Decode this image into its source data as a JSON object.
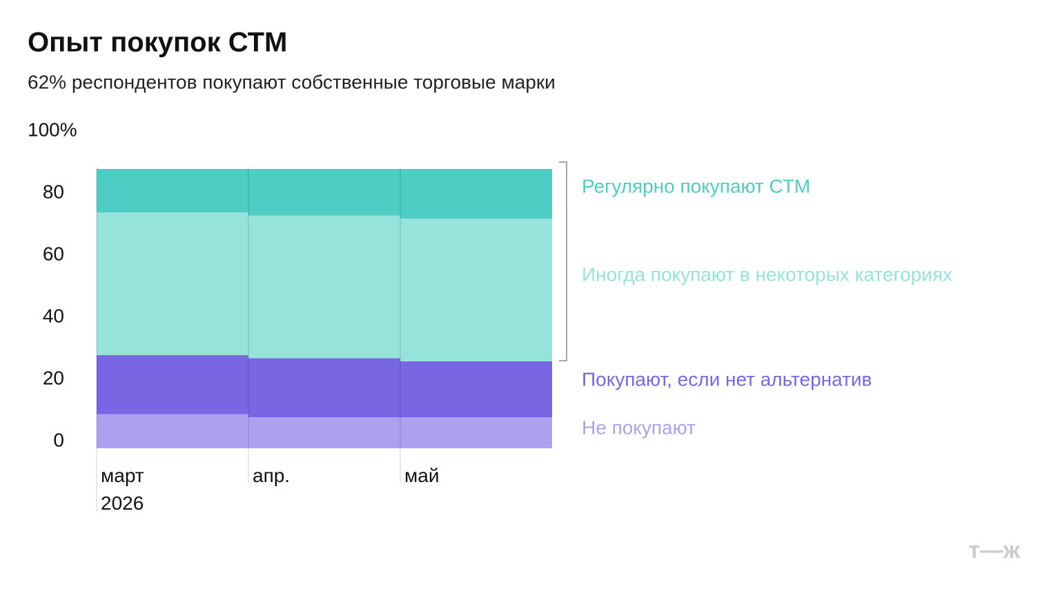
{
  "chart_data": {
    "type": "stacked-bar",
    "title": "Опыт покупок СТМ",
    "subtitle": "62% респондентов покупают собственные торговые марки",
    "categories": [
      "март 2026",
      "апр.",
      "май"
    ],
    "series": [
      {
        "name": "Не покупают",
        "color": "#aca1ee",
        "values": [
          11,
          10,
          10
        ]
      },
      {
        "name": "Покупают, если нет альтернатив",
        "color": "#7866e3",
        "values": [
          19,
          19,
          18
        ]
      },
      {
        "name": "Иногда покупают в некоторых категориях",
        "color": "#96e3dc",
        "values": [
          46,
          46,
          46
        ]
      },
      {
        "name": "Регулярно покупают СТМ",
        "color": "#4ecdc4",
        "values": [
          14,
          15,
          16
        ]
      }
    ],
    "ylim": [
      0,
      100
    ],
    "yticks": [
      0,
      20,
      40,
      60,
      80,
      {
        "value": 100,
        "label": "100%"
      }
    ],
    "logo": "т—ж"
  }
}
